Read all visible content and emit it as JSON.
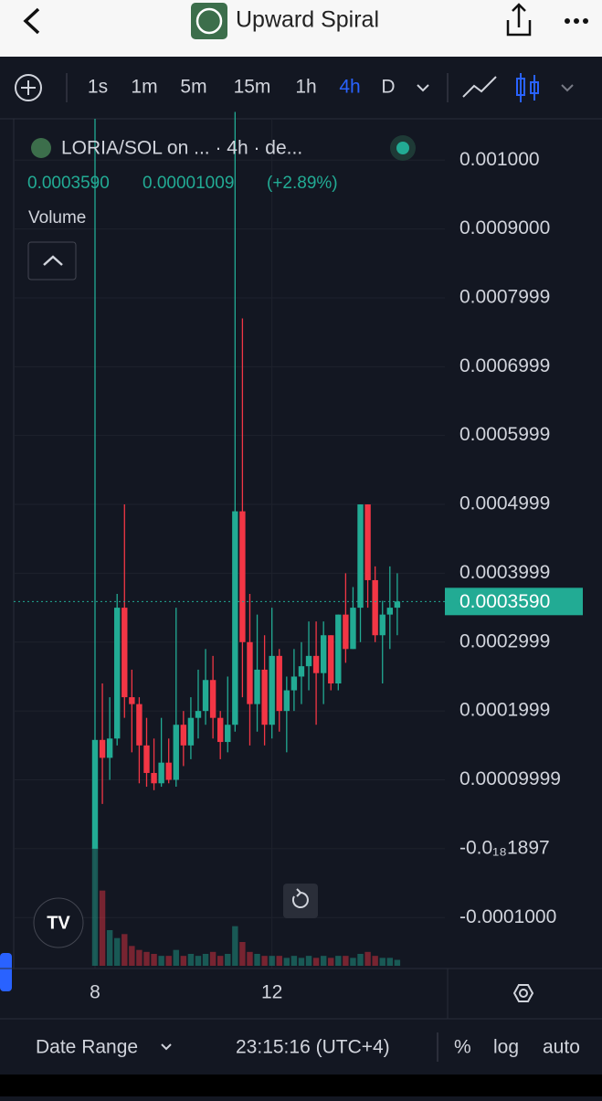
{
  "header": {
    "title": "Upward Spiral"
  },
  "toolbar": {
    "intervals": [
      "1s",
      "1m",
      "5m",
      "15m",
      "1h",
      "4h",
      "D"
    ],
    "active": "4h"
  },
  "legend": {
    "symbol": "LORIA/SOL on ... · 4h · de...",
    "change": "0.00001009",
    "change_pct": "(+2.89%)",
    "volume_label": "Volume"
  },
  "chart_data": {
    "type": "candlestick",
    "up_color": "#22ab94",
    "down_color": "#f23645",
    "categories": [
      "8",
      null,
      null,
      null,
      null,
      null,
      null,
      null,
      null,
      null,
      null,
      null,
      null,
      null,
      null,
      null,
      null,
      null,
      null,
      null,
      null,
      null,
      null,
      null,
      "12",
      null,
      null,
      null,
      null,
      null,
      null,
      null,
      null,
      null,
      null,
      null,
      null,
      null,
      null,
      null,
      null,
      null
    ],
    "open": [
      0,
      0.000158,
      0.000132,
      0.00016,
      0.00035,
      0.00022,
      0.00021,
      0.00015,
      0.00011,
      9.5e-05,
      0.000125,
      0.0001,
      0.00018,
      0.00015,
      0.00019,
      0.0002,
      0.000245,
      0.00019,
      0.000155,
      0.00018,
      0.00049,
      0.0003,
      0.00021,
      0.00026,
      0.00018,
      0.00028,
      0.0002,
      0.00023,
      0.00025,
      0.000265,
      0.00028,
      0.000255,
      0.00031,
      0.00024,
      0.00034,
      0.00029,
      0.00035,
      0.0005,
      0.00039,
      0.00031,
      0.00034,
      0.00035
    ],
    "high": [
      0.00106,
      0.00024,
      0.00022,
      0.00037,
      0.0005,
      0.00026,
      0.00022,
      0.00019,
      0.00016,
      0.00019,
      0.00016,
      0.00035,
      0.0002,
      0.00022,
      0.00026,
      0.00029,
      0.00028,
      0.0002,
      0.00025,
      0.00107,
      0.00077,
      0.00037,
      0.00034,
      0.00031,
      0.00035,
      0.00029,
      0.00025,
      0.00029,
      0.0003,
      0.00033,
      0.00033,
      0.00033,
      0.00031,
      0.00034,
      0.0004,
      0.00038,
      0.0005,
      0.0005,
      0.00041,
      0.00036,
      0.00041,
      0.0004
    ],
    "low": [
      0,
      6.5e-05,
      0.0001,
      0.00015,
      0.00019,
      0.00014,
      9.5e-05,
      9e-05,
      8.5e-05,
      9e-05,
      9.5e-05,
      9e-05,
      0.00012,
      0.00013,
      0.00016,
      0.00018,
      0.00016,
      0.00013,
      0.00014,
      0.00017,
      0.00022,
      0.00015,
      0.00017,
      0.00015,
      0.00016,
      0.00017,
      0.00014,
      0.0002,
      0.00021,
      0.00023,
      0.00018,
      0.00021,
      0.00023,
      0.00023,
      0.00027,
      0.00029,
      0.0003,
      0.00035,
      0.0003,
      0.00024,
      0.00029,
      0.00031
    ],
    "close": [
      0.000158,
      0.000132,
      0.00016,
      0.00035,
      0.00022,
      0.00021,
      0.00015,
      0.00011,
      9.5e-05,
      0.000125,
      0.0001,
      0.00018,
      0.00015,
      0.00019,
      0.0002,
      0.000245,
      0.00019,
      0.000155,
      0.00018,
      0.00049,
      0.0003,
      0.00021,
      0.00026,
      0.00018,
      0.00028,
      0.0002,
      0.00023,
      0.00025,
      0.000265,
      0.00028,
      0.000255,
      0.00031,
      0.00024,
      0.00034,
      0.00029,
      0.00035,
      0.0005,
      0.00039,
      0.00031,
      0.00034,
      0.00035,
      0.000359
    ],
    "volume": [
      60,
      38,
      18,
      14,
      16,
      10,
      8,
      7,
      6,
      5,
      5,
      8,
      5,
      6,
      5,
      6,
      7,
      5,
      6,
      20,
      12,
      7,
      6,
      5,
      5,
      5,
      4,
      5,
      4,
      5,
      4,
      5,
      4,
      5,
      5,
      4,
      6,
      7,
      5,
      4,
      4,
      3
    ],
    "ylim": [
      -0.00017,
      0.00106
    ],
    "yticks": [
      {
        "value": 0.001,
        "label": "0.001000"
      },
      {
        "value": 0.0009,
        "label": "0.0009000"
      },
      {
        "value": 0.0008,
        "label": "0.0007999"
      },
      {
        "value": 0.0007,
        "label": "0.0006999"
      },
      {
        "value": 0.0006,
        "label": "0.0005999"
      },
      {
        "value": 0.0005,
        "label": "0.0004999"
      },
      {
        "value": 0.0004,
        "label": "0.0003999"
      },
      {
        "value": 0.0003,
        "label": "0.0002999"
      },
      {
        "value": 0.0002,
        "label": "0.0001999"
      },
      {
        "value": 0.0001,
        "label": "0.00009999"
      },
      {
        "value": -1.897e-19,
        "label": "-0.0₁₈1897"
      },
      {
        "value": -0.0001,
        "label": "-0.0001000"
      }
    ],
    "last_price": {
      "value": 0.000359,
      "label": "0.0003590"
    },
    "grid": true
  },
  "footer": {
    "date_range": "Date Range",
    "time": "23:15:16 (UTC+4)",
    "percent": "%",
    "log": "log",
    "auto": "auto"
  }
}
